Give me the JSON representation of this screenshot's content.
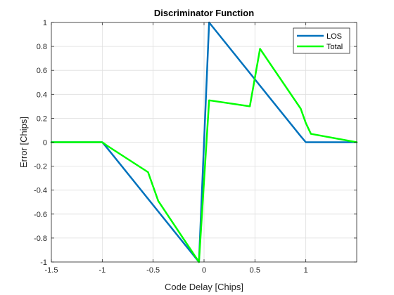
{
  "chart_data": {
    "type": "line",
    "title": "Discriminator Function",
    "xlabel": "Code Delay [Chips]",
    "ylabel": "Error [Chips]",
    "xlim": [
      -1.5,
      1.5
    ],
    "ylim": [
      -1,
      1
    ],
    "xticks": [
      -1.5,
      -1,
      -0.5,
      0,
      0.5,
      1
    ],
    "xtick_labels": [
      "-1.5",
      "-1",
      "-0.5",
      "0",
      "0.5",
      "1"
    ],
    "yticks": [
      -1,
      -0.8,
      -0.6,
      -0.4,
      -0.2,
      0,
      0.2,
      0.4,
      0.6,
      0.8,
      1
    ],
    "ytick_labels": [
      "-1",
      "-0.8",
      "-0.6",
      "-0.4",
      "-0.2",
      "0",
      "0.2",
      "0.4",
      "0.6",
      "0.8",
      "1"
    ],
    "grid": true,
    "legend_position": "top-right",
    "series": [
      {
        "name": "LOS",
        "color": "#0072BD",
        "x": [
          -1.5,
          -1.0,
          -0.95,
          -0.05,
          0.05,
          0.95,
          1.0,
          1.5
        ],
        "y": [
          0,
          0,
          -0.05,
          -1.0,
          1.0,
          0.05,
          0,
          0
        ]
      },
      {
        "name": "Total",
        "color": "#00FF00",
        "x": [
          -1.5,
          -1.0,
          -0.95,
          -0.55,
          -0.45,
          -0.05,
          0.05,
          0.45,
          0.55,
          0.95,
          1.0,
          1.05,
          1.5
        ],
        "y": [
          0,
          0,
          -0.03,
          -0.25,
          -0.49,
          -1.0,
          0.35,
          0.3,
          0.78,
          0.28,
          0.16,
          0.07,
          0
        ]
      }
    ]
  }
}
